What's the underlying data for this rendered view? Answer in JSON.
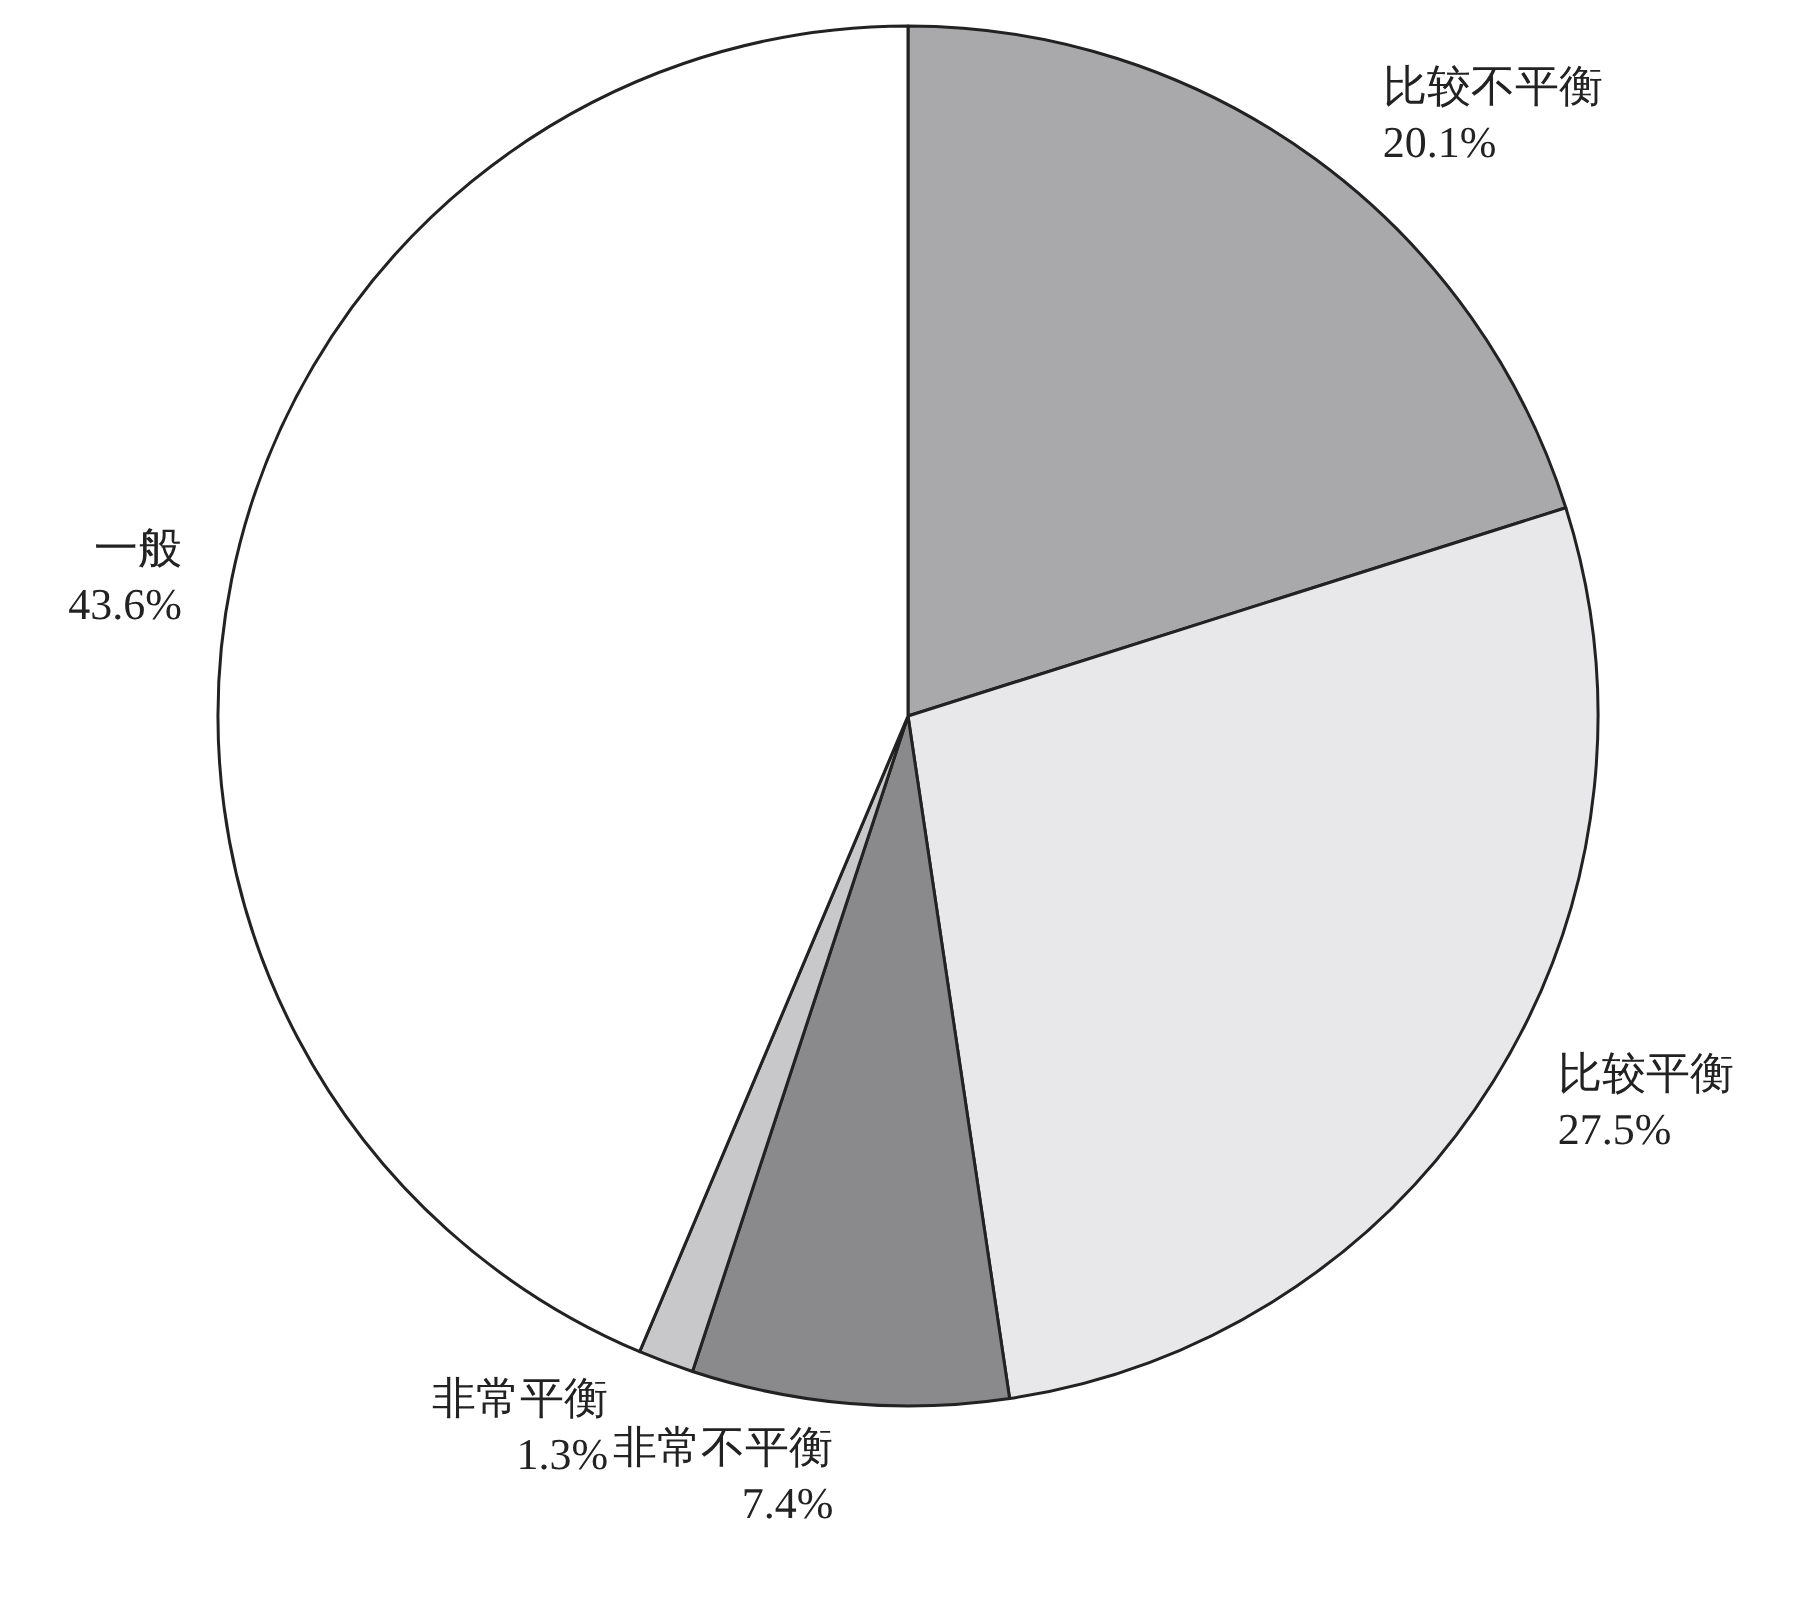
{
  "chart_data": {
    "type": "pie",
    "categories": [
      "比较不平衡",
      "比较平衡",
      "非常不平衡",
      "非常平衡",
      "一般"
    ],
    "values": [
      20.1,
      27.5,
      7.4,
      1.3,
      43.6
    ],
    "colors": [
      "#a9a9ab",
      "#e8e8ea",
      "#8a8a8c",
      "#c8c8ca",
      "#ffffff"
    ],
    "value_labels": [
      "20.1%",
      "27.5%",
      "7.4%",
      "1.3%",
      "43.6%"
    ]
  }
}
